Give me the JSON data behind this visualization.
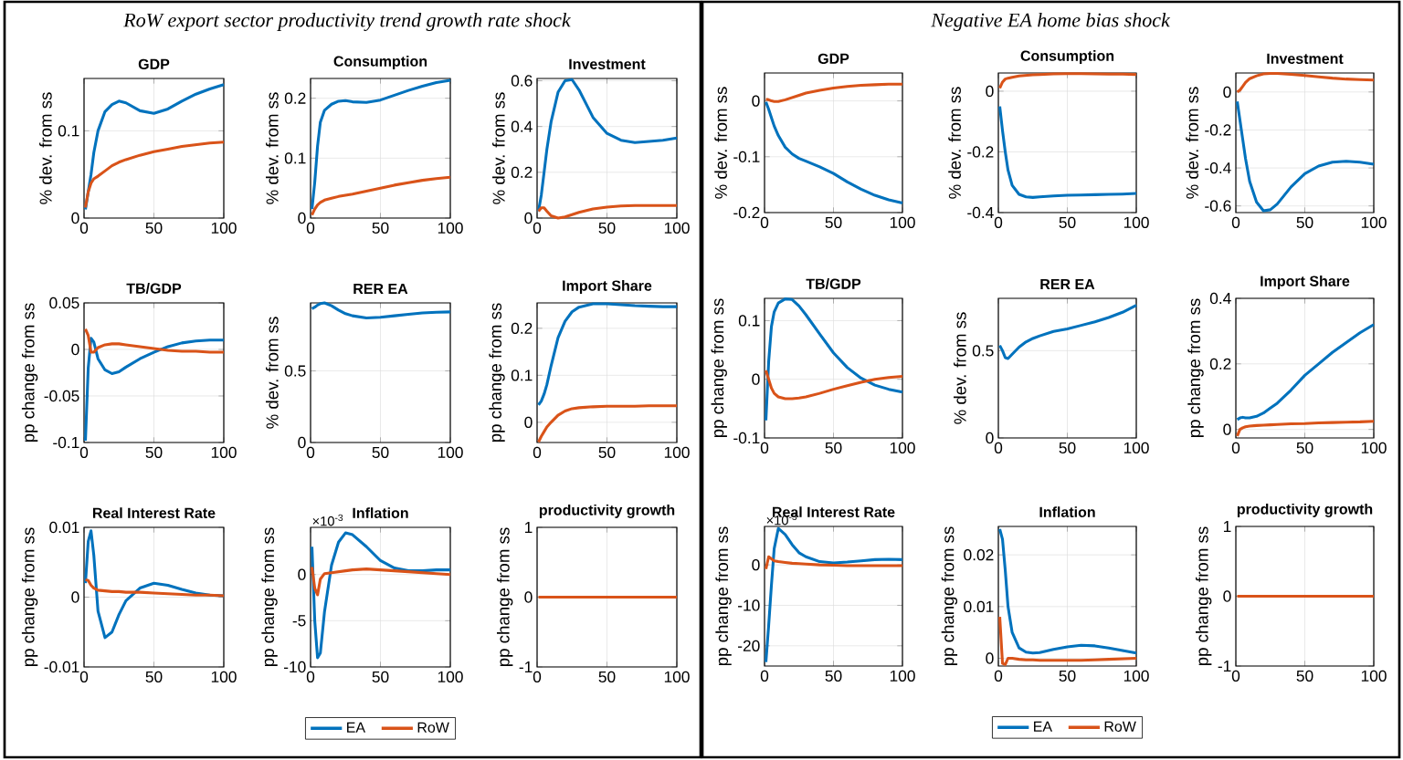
{
  "chart_data": [
    {
      "type": "line",
      "title": "GDP",
      "ylabel": "% dev. from ss",
      "annotations": [
        "RoW export sector productivity trend growth rate shock"
      ],
      "x": [
        1,
        3,
        5,
        7,
        10,
        15,
        20,
        25,
        30,
        40,
        50,
        60,
        70,
        80,
        90,
        100
      ],
      "xlim": [
        0,
        100
      ],
      "xticks": [
        0,
        50,
        100
      ],
      "ylim": [
        0,
        0.16
      ],
      "yticks": [
        0,
        0.1
      ],
      "grid": true,
      "series": [
        {
          "color": "#0072bd",
          "values": [
            0.01,
            0.03,
            0.05,
            0.075,
            0.1,
            0.122,
            0.13,
            0.134,
            0.132,
            0.123,
            0.12,
            0.125,
            0.134,
            0.142,
            0.148,
            0.153
          ]
        },
        {
          "color": "#d95319",
          "values": [
            0.012,
            0.03,
            0.04,
            0.045,
            0.048,
            0.054,
            0.06,
            0.064,
            0.067,
            0.072,
            0.076,
            0.079,
            0.082,
            0.084,
            0.086,
            0.087
          ]
        }
      ]
    },
    {
      "type": "line",
      "title": "Consumption",
      "ylabel": "% dev. from ss",
      "x": [
        1,
        3,
        5,
        7,
        10,
        15,
        20,
        25,
        30,
        40,
        50,
        60,
        70,
        80,
        90,
        100
      ],
      "xlim": [
        0,
        100
      ],
      "xticks": [
        0,
        50,
        100
      ],
      "ylim": [
        0,
        0.233
      ],
      "yticks": [
        0,
        0.1,
        0.2
      ],
      "grid": true,
      "series": [
        {
          "color": "#0072bd",
          "values": [
            0.015,
            0.06,
            0.12,
            0.16,
            0.18,
            0.19,
            0.195,
            0.196,
            0.194,
            0.193,
            0.197,
            0.205,
            0.213,
            0.22,
            0.226,
            0.23
          ]
        },
        {
          "color": "#d95319",
          "values": [
            0.005,
            0.015,
            0.022,
            0.026,
            0.03,
            0.033,
            0.036,
            0.038,
            0.04,
            0.045,
            0.05,
            0.055,
            0.059,
            0.063,
            0.066,
            0.068
          ]
        }
      ]
    },
    {
      "type": "line",
      "title": "Investment",
      "ylabel": "% dev. from ss",
      "x": [
        1,
        3,
        5,
        7,
        10,
        15,
        20,
        25,
        30,
        40,
        50,
        60,
        70,
        80,
        90,
        100
      ],
      "xlim": [
        0,
        100
      ],
      "xticks": [
        0,
        50,
        100
      ],
      "ylim": [
        0,
        0.61
      ],
      "yticks": [
        0,
        0.2,
        0.4,
        0.6
      ],
      "grid": true,
      "series": [
        {
          "color": "#0072bd",
          "values": [
            0.03,
            0.1,
            0.2,
            0.3,
            0.42,
            0.55,
            0.6,
            0.605,
            0.56,
            0.44,
            0.37,
            0.34,
            0.33,
            0.335,
            0.34,
            0.35
          ]
        },
        {
          "color": "#d95319",
          "values": [
            0.03,
            0.045,
            0.045,
            0.03,
            0.01,
            0.0,
            0.005,
            0.015,
            0.025,
            0.04,
            0.048,
            0.053,
            0.055,
            0.055,
            0.055,
            0.055
          ]
        }
      ]
    },
    {
      "type": "line",
      "title": "TB/GDP",
      "ylabel": "pp change from ss",
      "x": [
        1,
        3,
        5,
        7,
        10,
        15,
        20,
        25,
        30,
        40,
        50,
        60,
        70,
        80,
        90,
        100
      ],
      "xlim": [
        0,
        100
      ],
      "xticks": [
        0,
        50,
        100
      ],
      "ylim": [
        -0.1,
        0.05
      ],
      "yticks": [
        -0.1,
        -0.05,
        0,
        0.05
      ],
      "grid": true,
      "series": [
        {
          "color": "#0072bd",
          "values": [
            -0.098,
            -0.02,
            0.012,
            0.008,
            -0.01,
            -0.022,
            -0.026,
            -0.024,
            -0.019,
            -0.01,
            -0.003,
            0.003,
            0.007,
            0.009,
            0.01,
            0.01
          ]
        },
        {
          "color": "#d95319",
          "values": [
            0.022,
            0.015,
            -0.003,
            -0.003,
            0.002,
            0.005,
            0.006,
            0.006,
            0.005,
            0.003,
            0.001,
            -0.001,
            -0.002,
            -0.002,
            -0.003,
            -0.003
          ]
        }
      ]
    },
    {
      "type": "line",
      "title": "RER EA",
      "ylabel": "% dev. from ss",
      "x": [
        1,
        3,
        5,
        7,
        10,
        15,
        20,
        25,
        30,
        40,
        50,
        60,
        70,
        80,
        90,
        100
      ],
      "xlim": [
        0,
        100
      ],
      "xticks": [
        0,
        50,
        100
      ],
      "ylim": [
        0,
        0.975
      ],
      "yticks": [
        0,
        0.5
      ],
      "grid": true,
      "series": [
        {
          "color": "#0072bd",
          "values": [
            0.935,
            0.945,
            0.96,
            0.97,
            0.975,
            0.955,
            0.925,
            0.9,
            0.885,
            0.87,
            0.875,
            0.885,
            0.895,
            0.905,
            0.91,
            0.912
          ]
        }
      ]
    },
    {
      "type": "line",
      "title": "Import Share",
      "ylabel": "pp change from ss",
      "x": [
        1,
        3,
        5,
        7,
        10,
        15,
        20,
        25,
        30,
        40,
        50,
        60,
        70,
        80,
        90,
        100
      ],
      "xlim": [
        0,
        100
      ],
      "xticks": [
        0,
        50,
        100
      ],
      "ylim": [
        -0.043,
        0.254
      ],
      "yticks": [
        0,
        0.1,
        0.2
      ],
      "grid": true,
      "series": [
        {
          "color": "#0072bd",
          "values": [
            0.037,
            0.045,
            0.06,
            0.08,
            0.12,
            0.18,
            0.215,
            0.235,
            0.245,
            0.252,
            0.252,
            0.25,
            0.248,
            0.247,
            0.246,
            0.246
          ]
        },
        {
          "color": "#d95319",
          "values": [
            -0.042,
            -0.03,
            -0.02,
            -0.01,
            0.0,
            0.015,
            0.024,
            0.029,
            0.031,
            0.033,
            0.034,
            0.034,
            0.034,
            0.035,
            0.035,
            0.035
          ]
        }
      ]
    },
    {
      "type": "line",
      "title": "Real Interest Rate",
      "ylabel": "pp change from ss",
      "x": [
        1,
        3,
        5,
        7,
        10,
        15,
        20,
        25,
        30,
        40,
        50,
        60,
        70,
        80,
        90,
        100
      ],
      "xlim": [
        0,
        100
      ],
      "xticks": [
        0,
        50,
        100
      ],
      "ylim": [
        -0.01,
        0.01
      ],
      "yticks": [
        -0.01,
        0,
        0.01
      ],
      "grid": true,
      "series": [
        {
          "color": "#0072bd",
          "values": [
            0.002,
            0.008,
            0.0095,
            0.006,
            -0.002,
            -0.0058,
            -0.005,
            -0.0025,
            -0.0005,
            0.0013,
            0.002,
            0.0017,
            0.0011,
            0.0006,
            0.0003,
            0.0002
          ]
        },
        {
          "color": "#d95319",
          "values": [
            0.0025,
            0.0024,
            0.0017,
            0.0013,
            0.001,
            0.0009,
            0.0008,
            0.0008,
            0.0007,
            0.0007,
            0.0006,
            0.0005,
            0.0004,
            0.0003,
            0.0003,
            0.0002
          ]
        }
      ]
    },
    {
      "type": "line",
      "title": "Inflation",
      "ylabel": "pp change from ss",
      "annotations": [
        "×10$^{-3}$"
      ],
      "x": [
        1,
        3,
        5,
        7,
        10,
        15,
        20,
        25,
        30,
        40,
        50,
        60,
        70,
        80,
        90,
        100
      ],
      "xlim": [
        0,
        100
      ],
      "xticks": [
        0,
        50,
        100
      ],
      "ylim": [
        -10,
        5.1
      ],
      "yticks": [
        -10,
        -5,
        0
      ],
      "grid": true,
      "legend": "bottom",
      "series": [
        {
          "name": "EA",
          "color": "#0072bd",
          "values": [
            3,
            -5,
            -9,
            -8.5,
            -4,
            1,
            3.5,
            4.5,
            4.3,
            3,
            1.5,
            0.7,
            0.4,
            0.4,
            0.5,
            0.5
          ]
        },
        {
          "name": "RoW",
          "color": "#d95319",
          "values": [
            0.8,
            -1.5,
            -2.2,
            -0.5,
            0.1,
            0.2,
            0.3,
            0.4,
            0.5,
            0.6,
            0.5,
            0.4,
            0.3,
            0.2,
            0.1,
            0.0
          ]
        }
      ]
    },
    {
      "type": "line",
      "title": "productivity growth",
      "ylabel": "pp change from ss",
      "x": [
        1,
        3,
        5,
        7,
        10,
        15,
        20,
        25,
        30,
        40,
        50,
        60,
        70,
        80,
        90,
        100
      ],
      "xlim": [
        0,
        100
      ],
      "xticks": [
        0,
        50,
        100
      ],
      "ylim": [
        -1,
        1
      ],
      "yticks": [
        -1,
        0,
        1
      ],
      "grid": true,
      "series": [
        {
          "color": "#d95319",
          "values": [
            0,
            0,
            0,
            0,
            0,
            0,
            0,
            0,
            0,
            0,
            0,
            0,
            0,
            0,
            0,
            0
          ]
        }
      ]
    },
    {
      "type": "line",
      "title": "GDP",
      "ylabel": "% dev. from ss",
      "annotations": [
        "Negative EA home bias shock"
      ],
      "x": [
        1,
        3,
        5,
        7,
        10,
        15,
        20,
        25,
        30,
        40,
        50,
        60,
        70,
        80,
        90,
        100
      ],
      "xlim": [
        0,
        100
      ],
      "xticks": [
        0,
        50,
        100
      ],
      "ylim": [
        -0.2,
        0.05
      ],
      "yticks": [
        -0.2,
        -0.1,
        0
      ],
      "grid": true,
      "series": [
        {
          "color": "#0072bd",
          "values": [
            -0.002,
            -0.015,
            -0.03,
            -0.045,
            -0.062,
            -0.083,
            -0.095,
            -0.103,
            -0.108,
            -0.118,
            -0.13,
            -0.145,
            -0.158,
            -0.169,
            -0.177,
            -0.183
          ]
        },
        {
          "color": "#d95319",
          "values": [
            0.003,
            0.002,
            0.0,
            -0.001,
            -0.001,
            0.002,
            0.006,
            0.01,
            0.014,
            0.019,
            0.023,
            0.026,
            0.028,
            0.029,
            0.03,
            0.03
          ]
        }
      ]
    },
    {
      "type": "line",
      "title": "Consumption",
      "ylabel": "% dev. from ss",
      "x": [
        1,
        3,
        5,
        7,
        10,
        15,
        20,
        25,
        30,
        40,
        50,
        60,
        70,
        80,
        90,
        100
      ],
      "xlim": [
        0,
        100
      ],
      "xticks": [
        0,
        50,
        100
      ],
      "ylim": [
        -0.4,
        0.06
      ],
      "yticks": [
        -0.4,
        -0.2,
        0
      ],
      "grid": true,
      "series": [
        {
          "color": "#0072bd",
          "values": [
            -0.05,
            -0.13,
            -0.2,
            -0.26,
            -0.31,
            -0.34,
            -0.348,
            -0.35,
            -0.348,
            -0.345,
            -0.343,
            -0.342,
            -0.341,
            -0.34,
            -0.339,
            -0.337
          ]
        },
        {
          "color": "#d95319",
          "values": [
            0.01,
            0.03,
            0.04,
            0.043,
            0.046,
            0.05,
            0.052,
            0.054,
            0.055,
            0.057,
            0.058,
            0.058,
            0.057,
            0.056,
            0.056,
            0.055
          ]
        }
      ]
    },
    {
      "type": "line",
      "title": "Investment",
      "ylabel": "% dev. from ss",
      "x": [
        1,
        3,
        5,
        7,
        10,
        15,
        20,
        25,
        30,
        40,
        50,
        60,
        70,
        80,
        90,
        100
      ],
      "xlim": [
        0,
        100
      ],
      "xticks": [
        0,
        50,
        100
      ],
      "ylim": [
        -0.635,
        0.1
      ],
      "yticks": [
        -0.6,
        -0.4,
        -0.2,
        0
      ],
      "grid": true,
      "series": [
        {
          "color": "#0072bd",
          "values": [
            -0.05,
            -0.15,
            -0.25,
            -0.35,
            -0.47,
            -0.58,
            -0.625,
            -0.62,
            -0.59,
            -0.5,
            -0.43,
            -0.39,
            -0.37,
            -0.365,
            -0.37,
            -0.38
          ]
        },
        {
          "color": "#d95319",
          "values": [
            0.0,
            0.01,
            0.03,
            0.05,
            0.07,
            0.085,
            0.095,
            0.098,
            0.098,
            0.093,
            0.087,
            0.08,
            0.073,
            0.068,
            0.065,
            0.063
          ]
        }
      ]
    },
    {
      "type": "line",
      "title": "TB/GDP",
      "ylabel": "pp change from ss",
      "x": [
        1,
        3,
        5,
        7,
        10,
        15,
        20,
        25,
        30,
        40,
        50,
        60,
        70,
        80,
        90,
        100
      ],
      "xlim": [
        0,
        100
      ],
      "xticks": [
        0,
        50,
        100
      ],
      "ylim": [
        -0.1,
        0.138
      ],
      "yticks": [
        -0.1,
        0,
        0.1
      ],
      "grid": true,
      "series": [
        {
          "color": "#0072bd",
          "values": [
            -0.07,
            0.03,
            0.09,
            0.115,
            0.13,
            0.137,
            0.136,
            0.125,
            0.11,
            0.077,
            0.045,
            0.02,
            0.002,
            -0.01,
            -0.017,
            -0.022
          ]
        },
        {
          "color": "#d95319",
          "values": [
            0.015,
            0.0,
            -0.015,
            -0.024,
            -0.03,
            -0.033,
            -0.033,
            -0.032,
            -0.03,
            -0.024,
            -0.017,
            -0.011,
            -0.005,
            0.0,
            0.003,
            0.005
          ]
        }
      ]
    },
    {
      "type": "line",
      "title": "RER EA",
      "ylabel": "% dev. from ss",
      "x": [
        1,
        3,
        5,
        7,
        10,
        15,
        20,
        25,
        30,
        40,
        50,
        60,
        70,
        80,
        90,
        100
      ],
      "xlim": [
        0,
        100
      ],
      "xticks": [
        0,
        50,
        100
      ],
      "ylim": [
        0,
        0.8
      ],
      "yticks": [
        0,
        0.5
      ],
      "grid": true,
      "series": [
        {
          "color": "#0072bd",
          "values": [
            0.53,
            0.5,
            0.46,
            0.455,
            0.48,
            0.52,
            0.55,
            0.57,
            0.585,
            0.61,
            0.625,
            0.645,
            0.665,
            0.69,
            0.72,
            0.76
          ]
        }
      ]
    },
    {
      "type": "line",
      "title": "Import Share",
      "ylabel": "pp change from ss",
      "x": [
        1,
        3,
        5,
        7,
        10,
        15,
        20,
        25,
        30,
        40,
        50,
        60,
        70,
        80,
        90,
        100
      ],
      "xlim": [
        0,
        100
      ],
      "xticks": [
        0,
        50,
        100
      ],
      "ylim": [
        -0.026,
        0.4
      ],
      "yticks": [
        0,
        0.2,
        0.4
      ],
      "grid": true,
      "series": [
        {
          "color": "#0072bd",
          "values": [
            0.03,
            0.035,
            0.037,
            0.035,
            0.035,
            0.04,
            0.05,
            0.065,
            0.08,
            0.12,
            0.165,
            0.2,
            0.235,
            0.265,
            0.295,
            0.32
          ]
        },
        {
          "color": "#d95319",
          "values": [
            -0.02,
            0.0,
            0.005,
            0.008,
            0.01,
            0.012,
            0.013,
            0.014,
            0.015,
            0.017,
            0.018,
            0.02,
            0.021,
            0.022,
            0.023,
            0.025
          ]
        }
      ]
    },
    {
      "type": "line",
      "title": "Real Interest Rate",
      "ylabel": "pp change from ss",
      "annotations": [
        "×10$^{-3}$"
      ],
      "x": [
        1,
        3,
        5,
        7,
        10,
        15,
        20,
        25,
        30,
        40,
        50,
        60,
        70,
        80,
        90,
        100
      ],
      "xlim": [
        0,
        100
      ],
      "xticks": [
        0,
        50,
        100
      ],
      "ylim": [
        -25,
        9.5
      ],
      "yticks": [
        -20,
        -10,
        0
      ],
      "grid": true,
      "series": [
        {
          "color": "#0072bd",
          "values": [
            -24,
            -15,
            -5,
            4,
            9,
            7.5,
            5,
            3,
            2,
            0.8,
            0.5,
            0.7,
            1,
            1.3,
            1.4,
            1.3
          ]
        },
        {
          "color": "#d95319",
          "values": [
            -1,
            2,
            1.5,
            1,
            0.8,
            0.6,
            0.4,
            0.3,
            0.2,
            0,
            -0.1,
            -0.2,
            -0.2,
            -0.2,
            -0.2,
            -0.2
          ]
        }
      ]
    },
    {
      "type": "line",
      "title": "Inflation",
      "ylabel": "pp change from ss",
      "x": [
        1,
        3,
        5,
        7,
        10,
        15,
        20,
        25,
        30,
        40,
        50,
        60,
        70,
        80,
        90,
        100
      ],
      "xlim": [
        0,
        100
      ],
      "xticks": [
        0,
        50,
        100
      ],
      "ylim": [
        -0.0015,
        0.0255
      ],
      "yticks": [
        0,
        0.01,
        0.02
      ],
      "grid": true,
      "legend": "bottom",
      "series": [
        {
          "name": "EA",
          "color": "#0072bd",
          "values": [
            0.025,
            0.023,
            0.017,
            0.01,
            0.005,
            0.002,
            0.0012,
            0.001,
            0.0011,
            0.0017,
            0.0022,
            0.0025,
            0.0024,
            0.002,
            0.0015,
            0.001
          ]
        },
        {
          "name": "RoW",
          "color": "#d95319",
          "values": [
            0.008,
            -0.001,
            -0.0012,
            0.0,
            0.0,
            -0.0002,
            -0.0003,
            -0.0003,
            -0.0004,
            -0.0004,
            -0.0004,
            -0.0004,
            -0.0003,
            -0.0002,
            -0.0001,
            0.0
          ]
        }
      ]
    },
    {
      "type": "line",
      "title": "productivity growth",
      "ylabel": "pp change from ss",
      "x": [
        1,
        3,
        5,
        7,
        10,
        15,
        20,
        25,
        30,
        40,
        50,
        60,
        70,
        80,
        90,
        100
      ],
      "xlim": [
        0,
        100
      ],
      "xticks": [
        0,
        50,
        100
      ],
      "ylim": [
        -1,
        1
      ],
      "yticks": [
        -1,
        0,
        1
      ],
      "grid": true,
      "series": [
        {
          "color": "#d95319",
          "values": [
            0,
            0,
            0,
            0,
            0,
            0,
            0,
            0,
            0,
            0,
            0,
            0,
            0,
            0,
            0,
            0
          ]
        }
      ]
    }
  ]
}
